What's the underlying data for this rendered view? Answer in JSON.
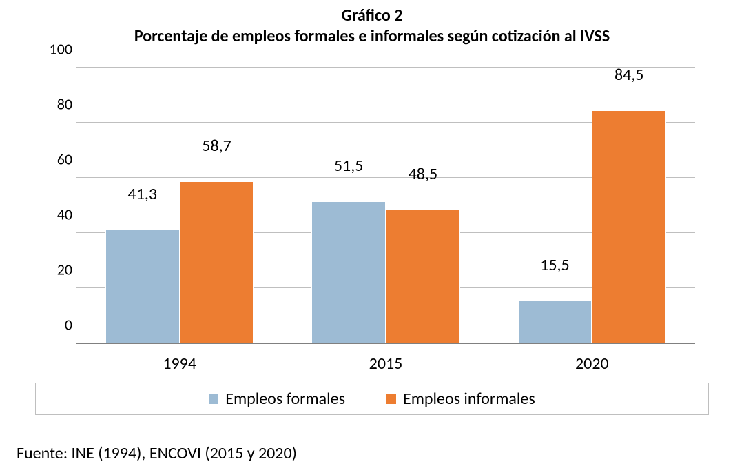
{
  "title": {
    "line1": "Gráfico 2",
    "line2": "Porcentaje de empleos formales e informales según cotización al IVSS",
    "fontsize": 24,
    "fontweight": "bold"
  },
  "chart": {
    "type": "bar",
    "background_color": "#ffffff",
    "frame_border_color": "#888888",
    "grid_color": "#bfbfbf",
    "axis_color": "#808080",
    "ylim": [
      0,
      100
    ],
    "yticks": [
      0,
      20,
      40,
      60,
      80,
      100
    ],
    "ytick_fontsize": 22,
    "xtick_fontsize": 24,
    "categories": [
      "1994",
      "2015",
      "2020"
    ],
    "series": [
      {
        "name": "Empleos formales",
        "color": "#9dbbd4",
        "values": [
          41.3,
          51.5,
          15.5
        ],
        "labels": [
          "41,3",
          "51,5",
          "15,5"
        ]
      },
      {
        "name": "Empleos informales",
        "color": "#ed7d31",
        "values": [
          58.7,
          48.5,
          84.5
        ],
        "labels": [
          "58,7",
          "48,5",
          "84,5"
        ]
      }
    ],
    "bar_group_width_pct": 24,
    "bar_gap_pct": 0,
    "datalabel_fontsize": 24,
    "legend": {
      "position": "bottom",
      "border_color": "#bfbfbf",
      "fontsize": 24,
      "items": [
        {
          "label": "Empleos formales",
          "color": "#9dbbd4"
        },
        {
          "label": "Empleos informales",
          "color": "#ed7d31"
        }
      ]
    }
  },
  "source": {
    "text": "Fuente: INE (1994), ENCOVI (2015 y 2020)",
    "fontsize": 24
  }
}
